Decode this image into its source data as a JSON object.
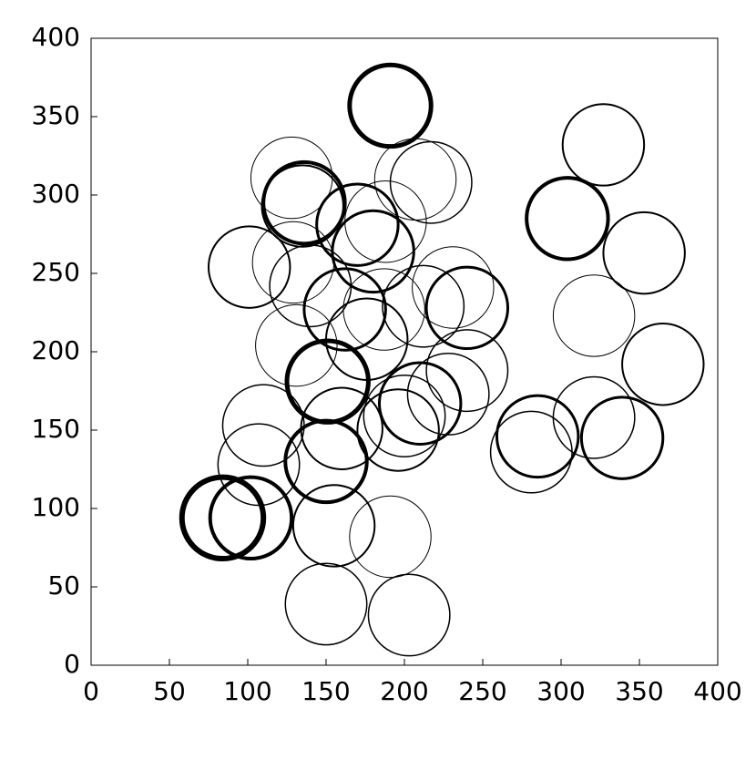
{
  "chart_data": {
    "type": "scatter",
    "x": [
      191,
      327,
      304,
      353,
      365,
      321,
      285,
      339,
      281,
      321,
      101,
      128,
      136,
      135,
      170,
      180,
      188,
      217,
      207,
      129,
      140,
      162,
      187,
      212,
      240,
      231,
      176,
      131,
      151,
      240,
      110,
      107,
      160,
      196,
      200,
      210,
      228,
      150,
      84,
      102,
      155,
      150,
      203,
      191
    ],
    "y": [
      357,
      332,
      285,
      263,
      192,
      223,
      146,
      145,
      136,
      158,
      254,
      311,
      295,
      293,
      281,
      264,
      283,
      308,
      310,
      257,
      242,
      227,
      227,
      229,
      228,
      241,
      208,
      204,
      181,
      188,
      153,
      128,
      151,
      150,
      159,
      167,
      173,
      130,
      94,
      94,
      89,
      39,
      32,
      82
    ],
    "r": [
      26,
      26,
      26,
      26,
      26,
      26,
      26,
      26,
      26,
      26,
      26,
      26,
      26,
      26,
      26,
      26,
      26,
      26,
      26,
      26,
      26,
      26,
      26,
      26,
      26,
      26,
      26,
      26,
      26,
      26,
      26,
      26,
      26,
      26,
      26,
      26,
      26,
      26,
      26,
      26,
      26,
      26,
      26,
      26
    ],
    "linewidths": [
      5,
      2,
      4,
      2,
      2,
      1,
      3,
      3,
      1.5,
      1.5,
      2,
      1,
      4,
      2,
      3,
      3,
      1,
      1.5,
      1,
      1,
      1.5,
      3,
      1,
      1.5,
      3,
      1,
      2,
      1,
      5,
      1.5,
      1.5,
      1.5,
      2,
      2,
      1.5,
      3,
      1.5,
      4,
      6,
      4,
      2,
      1.5,
      1.5,
      1
    ],
    "color": "#000000",
    "xlim": [
      0,
      400
    ],
    "ylim": [
      0,
      400
    ],
    "xticks": [
      0,
      50,
      100,
      150,
      200,
      250,
      300,
      350,
      400
    ],
    "yticks": [
      0,
      50,
      100,
      150,
      200,
      250,
      300,
      350,
      400
    ]
  }
}
